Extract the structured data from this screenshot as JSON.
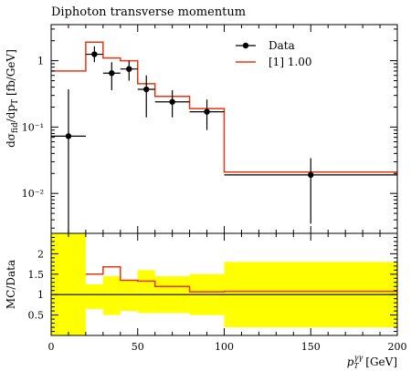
{
  "chart_data": [
    {
      "type": "line",
      "title": "Diphoton transverse momentum",
      "xlabel": "p_T^γγ [GeV]",
      "ylabel": "dσ_fid/dp_T [fb/GeV]",
      "yscale": "log",
      "xlim": [
        0,
        200
      ],
      "ylim": [
        0.0025,
        3.5
      ],
      "y_ticks": [
        {
          "value": 0.01,
          "label": "10⁻²"
        },
        {
          "value": 0.1,
          "label": "10⁻¹"
        },
        {
          "value": 1,
          "label": "1"
        }
      ],
      "legend_position": "top-right",
      "data": {
        "name": "Data",
        "color": "#000000",
        "points": [
          {
            "x_low": 0,
            "x_high": 20,
            "x": 10,
            "y": 0.073,
            "y_low": 0.001,
            "y_high": 0.37
          },
          {
            "x_low": 20,
            "x_high": 30,
            "x": 25,
            "y": 1.25,
            "y_low": 0.95,
            "y_high": 1.65
          },
          {
            "x_low": 30,
            "x_high": 40,
            "x": 35,
            "y": 0.65,
            "y_low": 0.36,
            "y_high": 0.95
          },
          {
            "x_low": 40,
            "x_high": 50,
            "x": 45,
            "y": 0.75,
            "y_low": 0.5,
            "y_high": 1.0
          },
          {
            "x_low": 50,
            "x_high": 60,
            "x": 55,
            "y": 0.37,
            "y_low": 0.14,
            "y_high": 0.6
          },
          {
            "x_low": 60,
            "x_high": 80,
            "x": 70,
            "y": 0.24,
            "y_low": 0.14,
            "y_high": 0.36
          },
          {
            "x_low": 80,
            "x_high": 100,
            "x": 90,
            "y": 0.17,
            "y_low": 0.09,
            "y_high": 0.26
          },
          {
            "x_low": 100,
            "x_high": 200,
            "x": 150,
            "y": 0.019,
            "y_low": 0.0035,
            "y_high": 0.034
          }
        ]
      },
      "mc": {
        "name": "[1] 1.00",
        "color": "#ee3311",
        "bins": [
          0,
          20,
          30,
          40,
          50,
          60,
          80,
          100,
          200
        ],
        "values": [
          0.7,
          1.9,
          1.1,
          1.0,
          0.45,
          0.29,
          0.19,
          0.021
        ]
      }
    },
    {
      "type": "line",
      "xlabel": "p_T^γγ [GeV]",
      "ylabel": "MC/Data",
      "xlim": [
        0,
        200
      ],
      "ylim": [
        0,
        2.5
      ],
      "x_ticks": [
        0,
        50,
        100,
        150,
        200
      ],
      "y_ticks": [
        0.5,
        1,
        1.5,
        2
      ],
      "reference_line": 1,
      "band_color": "#ffff00",
      "band": {
        "bins": [
          0,
          20,
          30,
          40,
          50,
          60,
          80,
          100,
          200
        ],
        "low": [
          0,
          0.65,
          0.5,
          0.6,
          0.55,
          0.55,
          0.5,
          0.2
        ],
        "high": [
          2.5,
          1.25,
          1.45,
          1.35,
          1.6,
          1.45,
          1.5,
          1.8
        ]
      },
      "ratio": {
        "bins": [
          0,
          20,
          30,
          40,
          50,
          60,
          80,
          100,
          200
        ],
        "values": [
          null,
          1.5,
          1.68,
          1.35,
          1.33,
          1.2,
          1.07,
          1.08
        ]
      }
    }
  ]
}
